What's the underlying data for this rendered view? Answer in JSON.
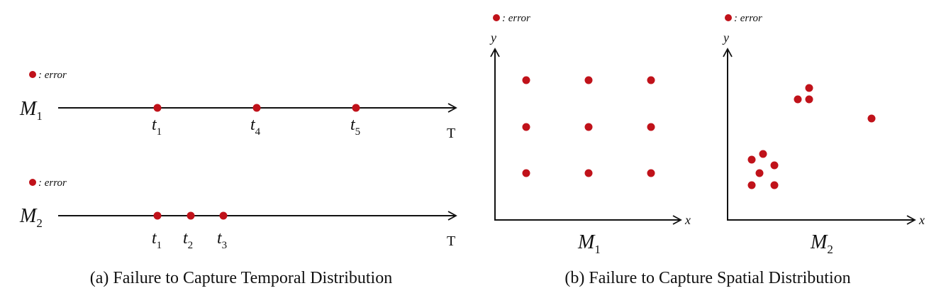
{
  "colors": {
    "error_dot": "#c0121a",
    "line": "#111111"
  },
  "legend_text": ": error",
  "temporal": {
    "caption": "(a) Failure to Capture Temporal Distribution",
    "axis_label": "T",
    "rows": [
      {
        "model": "M",
        "model_sub": "1",
        "errors": [
          {
            "t": "t",
            "sub": "1"
          },
          {
            "t": "t",
            "sub": "4"
          },
          {
            "t": "t",
            "sub": "5"
          }
        ]
      },
      {
        "model": "M",
        "model_sub": "2",
        "errors": [
          {
            "t": "t",
            "sub": "1"
          },
          {
            "t": "t",
            "sub": "2"
          },
          {
            "t": "t",
            "sub": "3"
          }
        ]
      }
    ]
  },
  "spatial": {
    "caption": "(b) Failure to Capture Spatial Distribution",
    "x_label": "x",
    "y_label": "y",
    "panels": [
      {
        "model": "M",
        "model_sub": "1"
      },
      {
        "model": "M",
        "model_sub": "2"
      }
    ]
  }
}
